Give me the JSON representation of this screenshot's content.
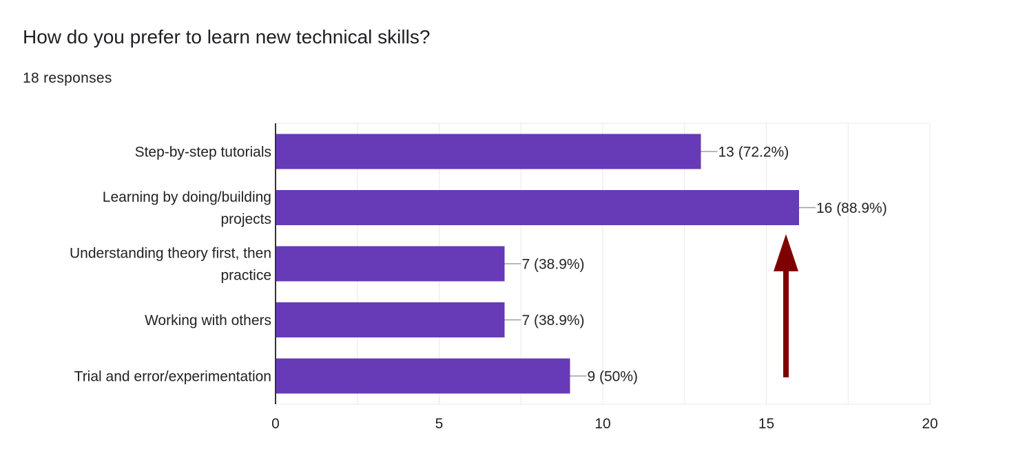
{
  "header": {
    "question": "How do you prefer to learn new technical skills?",
    "responses": "18 responses"
  },
  "colors": {
    "bar": "#673ab7",
    "arrow": "#7f0000",
    "grid": "#e8e8e8",
    "axis": "#333333",
    "leader": "#9e9e9e"
  },
  "annotation": {
    "type": "arrow",
    "direction": "up",
    "points_to_category": "Learning by doing/building projects"
  },
  "chart_data": {
    "type": "bar",
    "orientation": "horizontal",
    "categories": [
      "Step-by-step tutorials",
      "Learning by doing/building projects",
      "Understanding theory first, then practice",
      "Working with others",
      "Trial and error/experimentation"
    ],
    "category_lines": [
      [
        "Step-by-step tutorials"
      ],
      [
        "Learning by doing/building",
        "projects"
      ],
      [
        "Understanding theory first, then",
        "practice"
      ],
      [
        "Working with others"
      ],
      [
        "Trial and error/experimentation"
      ]
    ],
    "values": [
      13,
      16,
      7,
      7,
      9
    ],
    "value_labels": [
      "13 (72.2%)",
      "16 (88.9%)",
      "7 (38.9%)",
      "7 (38.9%)",
      "9 (50%)"
    ],
    "xlim": [
      0,
      20
    ],
    "xticks": [
      0,
      5,
      10,
      15,
      20
    ],
    "title": "How do you prefer to learn new technical skills?",
    "xlabel": "",
    "ylabel": "",
    "grid": true
  }
}
